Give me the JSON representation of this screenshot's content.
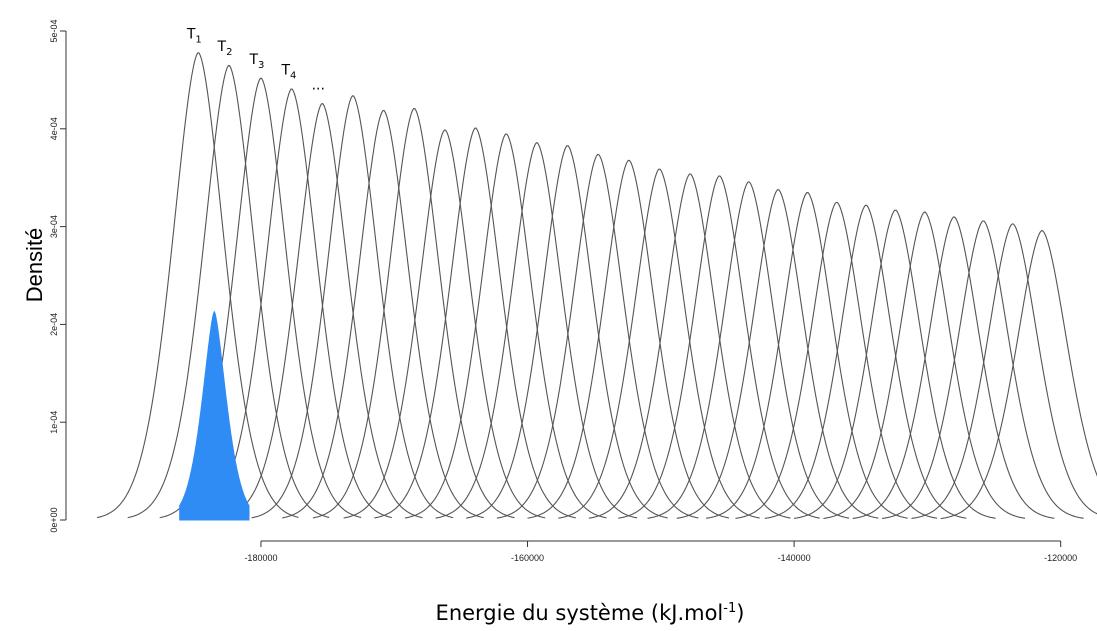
{
  "chart_data": {
    "type": "area",
    "xlabel": "Energie du système (kJ.mol",
    "xlabel_sup": "-1",
    "xlabel_end": ")",
    "ylabel": "Densité",
    "xlim": [
      -189000,
      -119000
    ],
    "ylim": [
      0,
      0.0005
    ],
    "x_ticks": [
      -180000,
      -160000,
      -140000,
      -120000
    ],
    "x_tick_labels": [
      "-180000",
      "-160000",
      "-140000",
      "-120000"
    ],
    "y_ticks": [
      0,
      0.0001,
      0.0002,
      0.0003,
      0.0004,
      0.0005
    ],
    "y_tick_labels": [
      "0e+00",
      "1e-04",
      "2e-04",
      "3e-04",
      "4e-04",
      "5e-04"
    ],
    "grid": false,
    "annotations": [
      {
        "base": "T",
        "sub": "1",
        "x": -185000
      },
      {
        "base": "T",
        "sub": "2",
        "x": -182700
      },
      {
        "base": "T",
        "sub": "3",
        "x": -180300
      },
      {
        "base": "T",
        "sub": "4",
        "x": -177900
      },
      {
        "base": "...",
        "sub": "",
        "x": -175700
      }
    ],
    "series": [
      {
        "mean": -184700,
        "peak": 0.000478
      },
      {
        "mean": -182400,
        "peak": 0.000465
      },
      {
        "mean": -180000,
        "peak": 0.000452
      },
      {
        "mean": -177700,
        "peak": 0.000441
      },
      {
        "mean": -175400,
        "peak": 0.000426
      },
      {
        "mean": -173100,
        "peak": 0.000434
      },
      {
        "mean": -170800,
        "peak": 0.000419
      },
      {
        "mean": -168500,
        "peak": 0.000421
      },
      {
        "mean": -166200,
        "peak": 0.000399
      },
      {
        "mean": -163900,
        "peak": 0.000401
      },
      {
        "mean": -161600,
        "peak": 0.000395
      },
      {
        "mean": -159300,
        "peak": 0.000386
      },
      {
        "mean": -157000,
        "peak": 0.000383
      },
      {
        "mean": -154700,
        "peak": 0.000374
      },
      {
        "mean": -152400,
        "peak": 0.000368
      },
      {
        "mean": -150100,
        "peak": 0.000359
      },
      {
        "mean": -147800,
        "peak": 0.000354
      },
      {
        "mean": -145600,
        "peak": 0.000352
      },
      {
        "mean": -143400,
        "peak": 0.000346
      },
      {
        "mean": -141200,
        "peak": 0.000338
      },
      {
        "mean": -139000,
        "peak": 0.000335
      },
      {
        "mean": -136800,
        "peak": 0.000325
      },
      {
        "mean": -134600,
        "peak": 0.000322
      },
      {
        "mean": -132400,
        "peak": 0.000317
      },
      {
        "mean": -130200,
        "peak": 0.000315
      },
      {
        "mean": -128000,
        "peak": 0.00031
      },
      {
        "mean": -125800,
        "peak": 0.000306
      },
      {
        "mean": -123600,
        "peak": 0.000303
      },
      {
        "mean": -121400,
        "peak": 0.000296
      }
    ],
    "highlight": {
      "mean": -183500,
      "peak": 0.000213,
      "color": "#2f8cf5"
    }
  }
}
